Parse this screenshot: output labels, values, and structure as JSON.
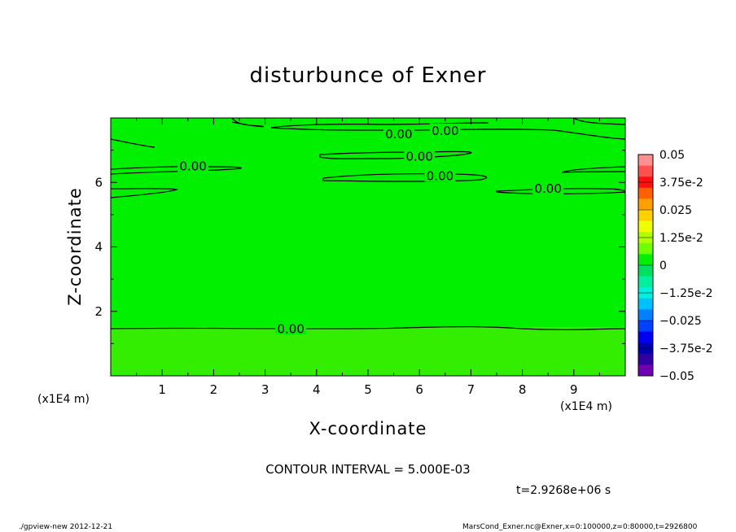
{
  "chart_data": {
    "type": "heatmap",
    "title": "disturbunce of Exner",
    "xlabel": "X-coordinate",
    "ylabel": "Z-coordinate",
    "x_unit": "(x1E4 m)",
    "xlim": [
      0,
      10
    ],
    "ylim": [
      0,
      8
    ],
    "x_ticks": [
      "1",
      "2",
      "3",
      "4",
      "5",
      "6",
      "7",
      "8",
      "9"
    ],
    "y_ticks": [
      "2",
      "4",
      "6"
    ],
    "fill_regions": [
      {
        "color": "#00f000",
        "z_range": [
          1.5,
          8
        ]
      },
      {
        "color": "#33ee00",
        "z_range": [
          0,
          1.5
        ]
      }
    ],
    "contour_labels": [
      {
        "text": "0.00",
        "x": 5.6,
        "y": 7.5
      },
      {
        "text": "0.00",
        "x": 6.5,
        "y": 7.6
      },
      {
        "text": "0.00",
        "x": 1.6,
        "y": 6.5
      },
      {
        "text": "0.00",
        "x": 6.0,
        "y": 6.8
      },
      {
        "text": "0.00",
        "x": 6.4,
        "y": 6.2
      },
      {
        "text": "0.00",
        "x": 8.5,
        "y": 5.8
      },
      {
        "text": "0.00",
        "x": 3.5,
        "y": 1.45
      }
    ],
    "colorbar": {
      "labels": [
        "0.05",
        "3.75e-2",
        "0.025",
        "1.25e-2",
        "0",
        "−1.25e-2",
        "−0.025",
        "−3.75e-2",
        "−0.05"
      ],
      "colors": [
        "#ff9090",
        "#ff5050",
        "#ff1010",
        "#ff6000",
        "#ffa000",
        "#ffd000",
        "#f0ff00",
        "#b0ff00",
        "#70ff00",
        "#00f000",
        "#00e060",
        "#00f0a0",
        "#00f0e0",
        "#00c0ff",
        "#0080ff",
        "#0040ff",
        "#0000f0",
        "#0000b0",
        "#3000a0",
        "#7000b0"
      ]
    },
    "contour_interval": "CONTOUR INTERVAL = 5.000E-03",
    "time": "t=2.9268e+06 s"
  },
  "footer": {
    "left": "./gpview-new  2012-12-21",
    "right": "MarsCond_Exner.nc@Exner,x=0:100000,z=0:80000,t=2926800"
  }
}
